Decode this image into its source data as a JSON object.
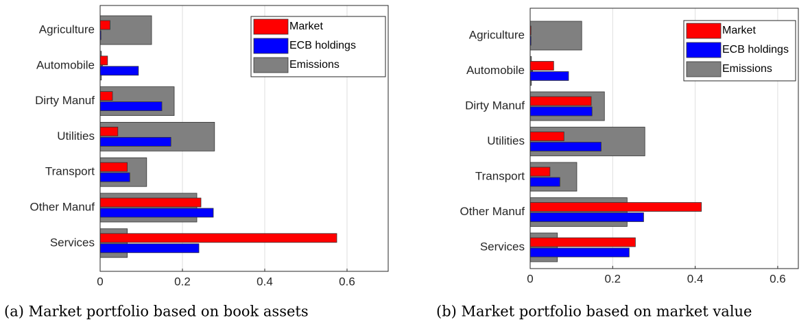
{
  "chart_data": [
    {
      "type": "barh",
      "caption": "(a) Market portfolio based on book assets",
      "categories": [
        "Agriculture",
        "Automobile",
        "Dirty Manuf",
        "Utilities",
        "Transport",
        "Other Manuf",
        "Services"
      ],
      "series": [
        {
          "name": "Market",
          "color": "#ff0000",
          "values": [
            0.024,
            0.018,
            0.03,
            0.043,
            0.066,
            0.245,
            0.575
          ]
        },
        {
          "name": "ECB holdings",
          "color": "#0000ff",
          "values": [
            0.002,
            0.093,
            0.15,
            0.172,
            0.072,
            0.275,
            0.24
          ]
        },
        {
          "name": "Emissions",
          "color": "#808080",
          "values": [
            0.125,
            0.003,
            0.18,
            0.278,
            0.113,
            0.235,
            0.066
          ]
        }
      ],
      "xlim": [
        0,
        0.7
      ],
      "xticks": [
        0,
        0.2,
        0.4,
        0.6
      ],
      "grid": true,
      "legend": "upper right"
    },
    {
      "type": "barh",
      "caption": "(b) Market portfolio based on market value",
      "categories": [
        "Agriculture",
        "Automobile",
        "Dirty Manuf",
        "Utilities",
        "Transport",
        "Other Manuf",
        "Services"
      ],
      "series": [
        {
          "name": "Market",
          "color": "#ff0000",
          "values": [
            0.002,
            0.057,
            0.148,
            0.082,
            0.048,
            0.415,
            0.255
          ]
        },
        {
          "name": "ECB holdings",
          "color": "#0000ff",
          "values": [
            0.002,
            0.093,
            0.15,
            0.172,
            0.072,
            0.275,
            0.24
          ]
        },
        {
          "name": "Emissions",
          "color": "#808080",
          "values": [
            0.125,
            0.003,
            0.18,
            0.278,
            0.113,
            0.235,
            0.066
          ]
        }
      ],
      "xlim": [
        0,
        0.65
      ],
      "xticks": [
        0,
        0.2,
        0.4,
        0.6
      ],
      "grid": true,
      "legend": "upper right"
    }
  ]
}
